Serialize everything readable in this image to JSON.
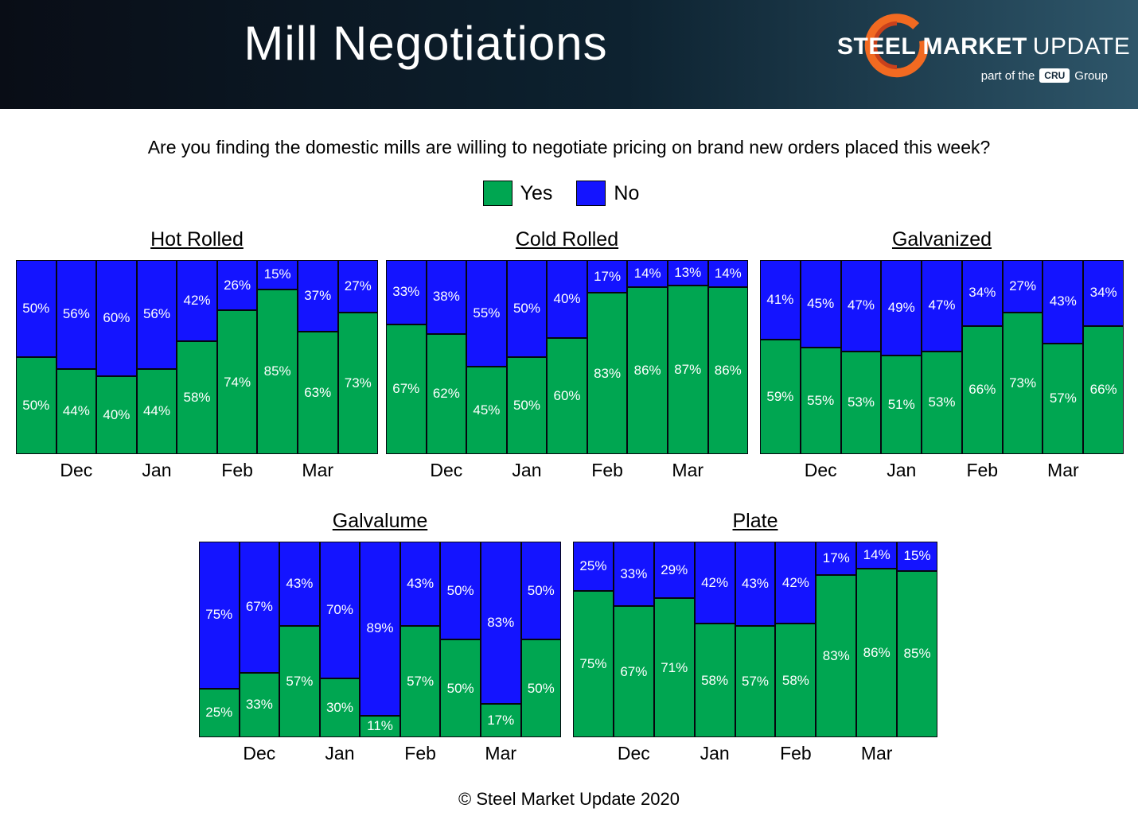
{
  "header": {
    "title": "Mill Negotiations",
    "logo": {
      "name_bold": "STEEL MARKET",
      "name_light": "UPDATE",
      "tagline_prefix": "part of the",
      "badge": "CRU",
      "tagline_suffix": "Group"
    }
  },
  "question": "Are you finding the domestic mills are willing to negotiate pricing on brand new orders placed this week?",
  "legend": {
    "yes_label": "Yes",
    "no_label": "No"
  },
  "colors": {
    "yes": "#00A651",
    "no": "#1414FF",
    "bar_border": "#06060F"
  },
  "footer": "© Steel Market Update 2020",
  "chart_data": [
    {
      "type": "bar",
      "stacked": true,
      "unit": "%",
      "ylim": [
        0,
        100
      ],
      "title": "Hot Rolled",
      "month_labels": [
        "Dec",
        "Jan",
        "Feb",
        "Mar"
      ],
      "month_positions": [
        1,
        3,
        5,
        7
      ],
      "series": [
        {
          "name": "Yes",
          "color_key": "yes",
          "values": [
            50,
            44,
            40,
            44,
            58,
            74,
            85,
            63,
            73
          ]
        },
        {
          "name": "No",
          "color_key": "no",
          "values": [
            50,
            56,
            60,
            56,
            42,
            26,
            15,
            37,
            27
          ]
        }
      ]
    },
    {
      "type": "bar",
      "stacked": true,
      "unit": "%",
      "ylim": [
        0,
        100
      ],
      "title": "Cold Rolled",
      "month_labels": [
        "Dec",
        "Jan",
        "Feb",
        "Mar"
      ],
      "month_positions": [
        1,
        3,
        5,
        7
      ],
      "series": [
        {
          "name": "Yes",
          "color_key": "yes",
          "values": [
            67,
            62,
            45,
            50,
            60,
            83,
            86,
            87,
            86
          ]
        },
        {
          "name": "No",
          "color_key": "no",
          "values": [
            33,
            38,
            55,
            50,
            40,
            17,
            14,
            13,
            14
          ]
        }
      ]
    },
    {
      "type": "bar",
      "stacked": true,
      "unit": "%",
      "ylim": [
        0,
        100
      ],
      "title": "Galvanized",
      "month_labels": [
        "Dec",
        "Jan",
        "Feb",
        "Mar"
      ],
      "month_positions": [
        1,
        3,
        5,
        7
      ],
      "series": [
        {
          "name": "Yes",
          "color_key": "yes",
          "values": [
            59,
            55,
            53,
            51,
            53,
            66,
            73,
            57,
            66
          ]
        },
        {
          "name": "No",
          "color_key": "no",
          "values": [
            41,
            45,
            47,
            49,
            47,
            34,
            27,
            43,
            34
          ]
        }
      ]
    },
    {
      "type": "bar",
      "stacked": true,
      "unit": "%",
      "ylim": [
        0,
        100
      ],
      "title": "Galvalume",
      "month_labels": [
        "Dec",
        "Jan",
        "Feb",
        "Mar"
      ],
      "month_positions": [
        1,
        3,
        5,
        7
      ],
      "series": [
        {
          "name": "Yes",
          "color_key": "yes",
          "values": [
            25,
            33,
            57,
            30,
            11,
            57,
            50,
            17,
            50
          ]
        },
        {
          "name": "No",
          "color_key": "no",
          "values": [
            75,
            67,
            43,
            70,
            89,
            43,
            50,
            83,
            50
          ]
        }
      ]
    },
    {
      "type": "bar",
      "stacked": true,
      "unit": "%",
      "ylim": [
        0,
        100
      ],
      "title": "Plate",
      "month_labels": [
        "Dec",
        "Jan",
        "Feb",
        "Mar"
      ],
      "month_positions": [
        1,
        3,
        5,
        7
      ],
      "series": [
        {
          "name": "Yes",
          "color_key": "yes",
          "values": [
            75,
            67,
            71,
            58,
            57,
            58,
            83,
            86,
            85
          ]
        },
        {
          "name": "No",
          "color_key": "no",
          "values": [
            25,
            33,
            29,
            42,
            43,
            42,
            17,
            14,
            15
          ]
        }
      ]
    }
  ]
}
